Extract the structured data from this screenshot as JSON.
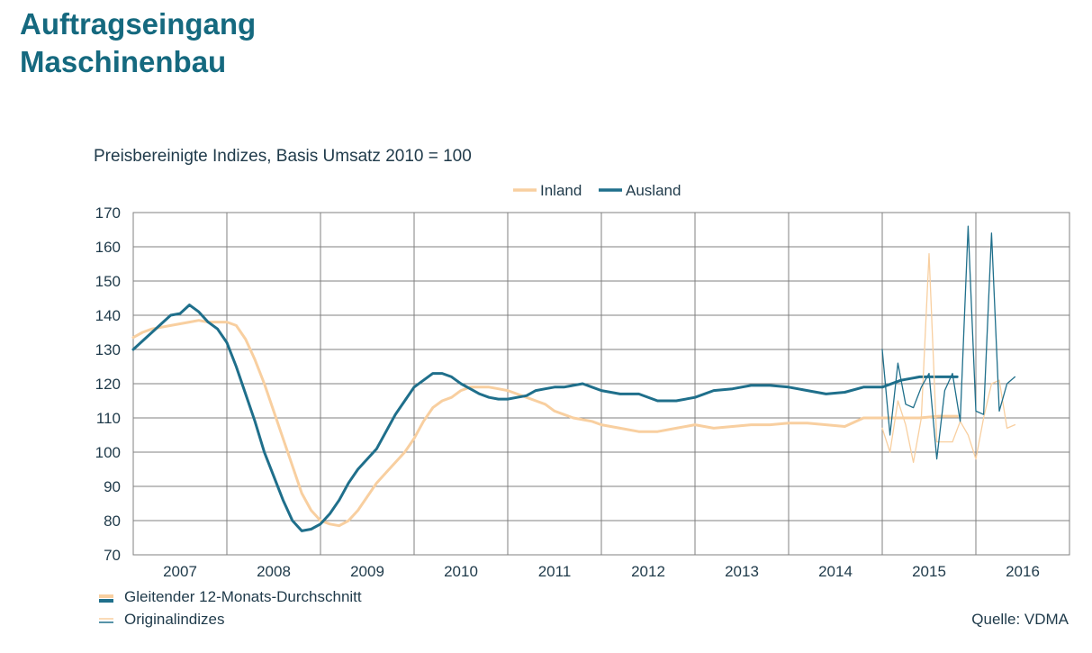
{
  "header": {
    "title_line1": "Auftragseingang",
    "title_line2": "Maschinenbau"
  },
  "subtitle": "Preisbereinigte Indizes, Basis Umsatz 2010 = 100",
  "footer": {
    "note_moving_avg": "Gleitender 12-Monats-Durchschnitt",
    "note_original": "Originalindizes",
    "source": "Quelle: VDMA"
  },
  "colors": {
    "title": "#15697f",
    "inland": "#f8cfa0",
    "ausland": "#1f6f8b",
    "grid": "#808080"
  },
  "chart_data": {
    "type": "line",
    "ylim": [
      70,
      170
    ],
    "yticks": [
      70,
      80,
      90,
      100,
      110,
      120,
      130,
      140,
      150,
      160,
      170
    ],
    "x_tick_labels": [
      "2007",
      "2008",
      "2009",
      "2010",
      "2011",
      "2012",
      "2013",
      "2014",
      "2015",
      "2016"
    ],
    "x_unit": "years",
    "xlim": [
      2007.0,
      2017.0
    ],
    "grid": "on",
    "legend": {
      "placement": "top-center",
      "entries": [
        "Inland",
        "Ausland"
      ]
    },
    "series": [
      {
        "name": "Inland",
        "style": "Gleitender 12-Monats-Durchschnitt",
        "x": [
          2007.0,
          2007.1,
          2007.2,
          2007.3,
          2007.4,
          2007.5,
          2007.6,
          2007.7,
          2007.8,
          2007.9,
          2008.0,
          2008.1,
          2008.2,
          2008.3,
          2008.4,
          2008.5,
          2008.6,
          2008.7,
          2008.8,
          2008.9,
          2009.0,
          2009.1,
          2009.2,
          2009.3,
          2009.4,
          2009.5,
          2009.6,
          2009.7,
          2009.8,
          2009.9,
          2010.0,
          2010.1,
          2010.2,
          2010.3,
          2010.4,
          2010.5,
          2010.6,
          2010.7,
          2010.8,
          2010.9,
          2011.0,
          2011.1,
          2011.2,
          2011.3,
          2011.4,
          2011.5,
          2011.6,
          2011.7,
          2011.8,
          2011.9,
          2012.0,
          2012.2,
          2012.4,
          2012.6,
          2012.8,
          2013.0,
          2013.2,
          2013.4,
          2013.6,
          2013.8,
          2014.0,
          2014.2,
          2014.4,
          2014.6,
          2014.8,
          2015.0,
          2015.2,
          2015.4,
          2015.6,
          2015.8
        ],
        "y": [
          133.5,
          135,
          136,
          136.5,
          137,
          137.5,
          138,
          138.5,
          138,
          138,
          138,
          137,
          133,
          127,
          120,
          112,
          104,
          96,
          88,
          83,
          80,
          79,
          78.5,
          80,
          83,
          87,
          91,
          94,
          97,
          100,
          104,
          109,
          113,
          115,
          116,
          118,
          119,
          119,
          119,
          118.5,
          118,
          117,
          116,
          115,
          114,
          112,
          111,
          110,
          109.5,
          109,
          108,
          107,
          106,
          106,
          107,
          108,
          107,
          107.5,
          108,
          108,
          108.5,
          108.5,
          108,
          107.5,
          110,
          110,
          110,
          110,
          110.5,
          110.5
        ]
      },
      {
        "name": "Ausland",
        "style": "Gleitender 12-Monats-Durchschnitt",
        "x": [
          2007.0,
          2007.1,
          2007.2,
          2007.3,
          2007.4,
          2007.5,
          2007.6,
          2007.7,
          2007.8,
          2007.9,
          2008.0,
          2008.1,
          2008.2,
          2008.3,
          2008.4,
          2008.5,
          2008.6,
          2008.7,
          2008.8,
          2008.9,
          2009.0,
          2009.1,
          2009.2,
          2009.3,
          2009.4,
          2009.5,
          2009.6,
          2009.7,
          2009.8,
          2009.9,
          2010.0,
          2010.1,
          2010.2,
          2010.3,
          2010.4,
          2010.5,
          2010.6,
          2010.7,
          2010.8,
          2010.9,
          2011.0,
          2011.1,
          2011.2,
          2011.3,
          2011.4,
          2011.5,
          2011.6,
          2011.7,
          2011.8,
          2011.9,
          2012.0,
          2012.2,
          2012.4,
          2012.6,
          2012.8,
          2013.0,
          2013.2,
          2013.4,
          2013.6,
          2013.8,
          2014.0,
          2014.2,
          2014.4,
          2014.6,
          2014.8,
          2015.0,
          2015.2,
          2015.4,
          2015.6,
          2015.8
        ],
        "y": [
          130,
          132.5,
          135,
          137.5,
          140,
          140.5,
          143,
          141,
          138,
          136,
          132,
          125,
          117,
          109,
          100,
          93,
          86,
          80,
          77,
          77.5,
          79,
          82,
          86,
          91,
          95,
          98,
          101,
          106,
          111,
          115,
          119,
          121,
          123,
          123,
          122,
          120,
          118.5,
          117,
          116,
          115.5,
          115.5,
          116,
          116.5,
          118,
          118.5,
          119,
          119,
          119.5,
          120,
          119,
          118,
          117,
          117,
          115,
          115,
          116,
          118,
          118.5,
          119.5,
          119.5,
          119,
          118,
          117,
          117.5,
          119,
          119,
          121,
          122,
          122,
          122
        ]
      },
      {
        "name": "Inland",
        "style": "Originalindizes",
        "x": [
          2015.0,
          2015.083,
          2015.167,
          2015.25,
          2015.333,
          2015.417,
          2015.5,
          2015.583,
          2015.667,
          2015.75,
          2015.833,
          2015.917,
          2016.0,
          2016.083,
          2016.167,
          2016.25,
          2016.333,
          2016.417
        ],
        "y": [
          107,
          100,
          115,
          108,
          97,
          110,
          158,
          103,
          103,
          103,
          109,
          105,
          98,
          110,
          120,
          121,
          107,
          108
        ]
      },
      {
        "name": "Ausland",
        "style": "Originalindizes",
        "x": [
          2015.0,
          2015.083,
          2015.167,
          2015.25,
          2015.333,
          2015.417,
          2015.5,
          2015.583,
          2015.667,
          2015.75,
          2015.833,
          2015.917,
          2016.0,
          2016.083,
          2016.167,
          2016.25,
          2016.333,
          2016.417
        ],
        "y": [
          130,
          105,
          126,
          114,
          113,
          119,
          123,
          98,
          118,
          123,
          109,
          166,
          112,
          111,
          164,
          112,
          120,
          122
        ]
      }
    ]
  }
}
